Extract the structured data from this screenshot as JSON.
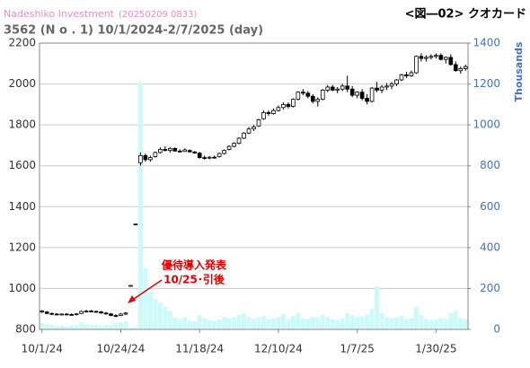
{
  "chart_data": {
    "type": "candlestick",
    "source": "Nadeshiko Investment",
    "timestamp": "(20250209 0833)",
    "title": "<図―02> クオカード",
    "subtitle": "3562 (N o .  1) 10/1/2024-2/7/2025 (day)",
    "y2label": "Thousands",
    "annotation": [
      "優待導入発表",
      "10/25･引後"
    ],
    "categories": [
      "10/1/24",
      null,
      null,
      null,
      null,
      null,
      null,
      null,
      null,
      null,
      null,
      null,
      null,
      null,
      null,
      null,
      "10/24/24",
      null,
      null,
      null,
      null,
      null,
      null,
      null,
      null,
      null,
      null,
      null,
      null,
      null,
      null,
      null,
      "11/18/24",
      null,
      null,
      null,
      null,
      null,
      null,
      null,
      null,
      null,
      null,
      null,
      null,
      null,
      null,
      null,
      "12/10/24",
      null,
      null,
      null,
      null,
      null,
      null,
      null,
      null,
      null,
      null,
      null,
      null,
      null,
      null,
      null,
      "1/7/25",
      null,
      null,
      null,
      null,
      null,
      null,
      null,
      null,
      null,
      null,
      null,
      null,
      null,
      null,
      null,
      "1/30/25",
      null,
      null,
      null,
      null,
      null,
      null
    ],
    "open": [
      885,
      885,
      878,
      875,
      872,
      875,
      873,
      872,
      878,
      888,
      890,
      888,
      886,
      880,
      876,
      868,
      868,
      875,
      1015,
      1315,
      1615,
      1650,
      1630,
      1645,
      1665,
      1680,
      1675,
      1685,
      1672,
      1670,
      1675,
      1668,
      1662,
      1640,
      1638,
      1642,
      1645,
      1660,
      1680,
      1695,
      1710,
      1735,
      1760,
      1780,
      1795,
      1830,
      1860,
      1855,
      1870,
      1885,
      1900,
      1890,
      1925,
      1960,
      1955,
      1940,
      1915,
      1925,
      1970,
      1985,
      1970,
      1975,
      1990,
      1975,
      1945,
      1960,
      1930,
      1915,
      1980,
      1970,
      1985,
      1990,
      2000,
      2020,
      2045,
      2040,
      2055,
      2135,
      2125,
      2130,
      2135,
      2140,
      2120,
      2130,
      2095,
      2065,
      2075
    ],
    "high": [
      895,
      890,
      882,
      880,
      878,
      880,
      878,
      880,
      892,
      895,
      895,
      892,
      890,
      885,
      880,
      875,
      880,
      885,
      1015,
      1315,
      1665,
      1660,
      1650,
      1670,
      1690,
      1695,
      1690,
      1690,
      1680,
      1685,
      1680,
      1672,
      1668,
      1650,
      1648,
      1650,
      1665,
      1680,
      1700,
      1715,
      1740,
      1765,
      1790,
      1800,
      1830,
      1870,
      1870,
      1880,
      1895,
      1910,
      1910,
      1930,
      1965,
      1975,
      1965,
      1950,
      1935,
      1975,
      1995,
      1995,
      1985,
      2000,
      2040,
      1990,
      1965,
      1975,
      1950,
      1985,
      2010,
      1995,
      2005,
      2010,
      2025,
      2050,
      2060,
      2065,
      2140,
      2150,
      2140,
      2145,
      2150,
      2150,
      2135,
      2145,
      2110,
      2085,
      2095
    ],
    "low": [
      880,
      875,
      870,
      870,
      868,
      870,
      868,
      868,
      875,
      882,
      885,
      882,
      878,
      872,
      865,
      860,
      865,
      870,
      1015,
      1315,
      1600,
      1620,
      1620,
      1640,
      1660,
      1670,
      1665,
      1670,
      1665,
      1668,
      1665,
      1660,
      1635,
      1630,
      1632,
      1635,
      1640,
      1655,
      1675,
      1690,
      1705,
      1730,
      1755,
      1770,
      1790,
      1825,
      1845,
      1850,
      1865,
      1875,
      1880,
      1885,
      1920,
      1945,
      1930,
      1905,
      1890,
      1920,
      1960,
      1965,
      1955,
      1965,
      1960,
      1935,
      1930,
      1920,
      1900,
      1910,
      1960,
      1955,
      1970,
      1975,
      1990,
      2015,
      2030,
      2035,
      2050,
      2110,
      2110,
      2120,
      2125,
      2115,
      2100,
      2090,
      2060,
      2050,
      2065
    ],
    "close": [
      890,
      878,
      875,
      872,
      875,
      873,
      872,
      876,
      888,
      890,
      888,
      886,
      880,
      876,
      868,
      866,
      875,
      880,
      1015,
      1315,
      1650,
      1630,
      1640,
      1665,
      1680,
      1675,
      1685,
      1672,
      1670,
      1678,
      1668,
      1662,
      1640,
      1638,
      1642,
      1640,
      1660,
      1675,
      1695,
      1710,
      1735,
      1760,
      1780,
      1790,
      1825,
      1860,
      1855,
      1870,
      1885,
      1900,
      1890,
      1925,
      1960,
      1955,
      1940,
      1915,
      1925,
      1970,
      1985,
      1970,
      1975,
      1990,
      1975,
      1945,
      1960,
      1930,
      1915,
      1980,
      1970,
      1985,
      1990,
      2000,
      2020,
      2045,
      2040,
      2055,
      2135,
      2125,
      2130,
      2135,
      2140,
      2120,
      2130,
      2095,
      2065,
      2075,
      2085
    ],
    "volume": [
      30,
      25,
      20,
      18,
      20,
      15,
      18,
      20,
      35,
      25,
      22,
      20,
      18,
      20,
      25,
      30,
      35,
      40,
      8,
      10,
      1206,
      300,
      180,
      150,
      130,
      110,
      90,
      60,
      50,
      60,
      45,
      40,
      70,
      55,
      45,
      40,
      50,
      60,
      55,
      60,
      70,
      80,
      60,
      50,
      60,
      65,
      50,
      55,
      60,
      75,
      50,
      65,
      80,
      55,
      50,
      60,
      60,
      70,
      60,
      50,
      45,
      55,
      80,
      70,
      60,
      65,
      70,
      100,
      210,
      80,
      60,
      55,
      60,
      65,
      50,
      55,
      110,
      70,
      50,
      45,
      50,
      55,
      50,
      80,
      90,
      55,
      50
    ],
    "up_color": "#ffffff",
    "down_color": "#000000",
    "volume_color": "#ccfafa",
    "ylim": [
      800,
      2200
    ],
    "yticks": [
      800,
      1000,
      1200,
      1400,
      1600,
      1800,
      2000,
      2200
    ],
    "y2lim": [
      0,
      1400
    ],
    "y2ticks": [
      0,
      200,
      400,
      600,
      800,
      1000,
      1200,
      1400
    ],
    "y2_color": "#4472c4",
    "grid": true
  }
}
